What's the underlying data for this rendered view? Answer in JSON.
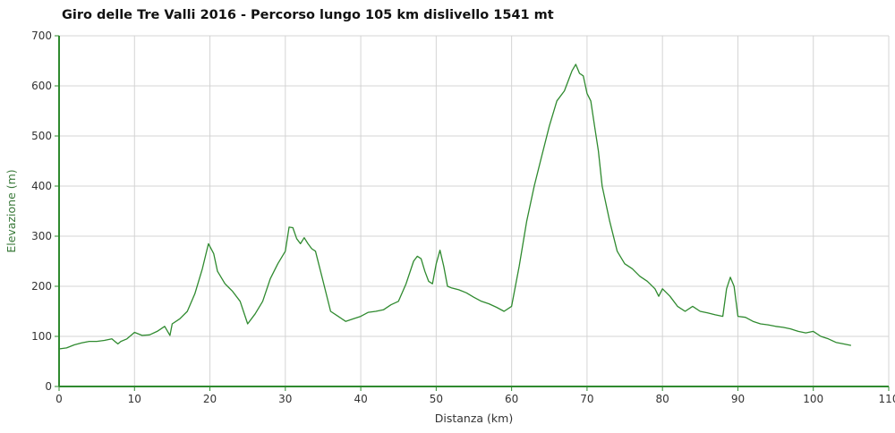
{
  "chart_data": {
    "type": "line",
    "title": "Giro delle Tre Valli 2016 - Percorso lungo 105 km dislivello 1541 mt",
    "xlabel": "Distanza (km)",
    "ylabel": "Elevazione (m)",
    "xlim": [
      0,
      110
    ],
    "ylim": [
      0,
      700
    ],
    "xticks": [
      0,
      10,
      20,
      30,
      40,
      50,
      60,
      70,
      80,
      90,
      100,
      110
    ],
    "yticks": [
      0,
      100,
      200,
      300,
      400,
      500,
      600,
      700
    ],
    "grid": true,
    "legend": "none",
    "colors": {
      "line": "#2f8a2f",
      "axis": "#2f8a2f",
      "grid": "#d4d4d4",
      "text": "#333333",
      "ylabel": "#3a7a3a"
    },
    "series": [
      {
        "x": [
          0,
          1,
          2,
          3,
          4,
          5,
          6,
          7,
          7.8,
          8.2,
          9,
          10,
          11,
          12,
          13,
          14,
          14.7,
          15,
          16,
          17,
          18,
          19,
          19.8,
          20.5,
          21,
          22,
          23,
          24,
          25,
          26,
          27,
          28,
          29,
          30,
          30.5,
          31,
          31.5,
          32,
          32.5,
          33,
          33.5,
          34,
          35,
          36,
          37,
          38,
          39,
          40,
          41,
          42,
          43,
          44,
          45,
          46,
          47,
          47.5,
          48,
          48.5,
          49,
          49.5,
          50,
          50.5,
          51,
          51.5,
          52,
          53,
          54,
          55,
          56,
          57,
          58,
          59,
          60,
          61,
          62,
          63,
          64,
          65,
          66,
          67,
          68,
          68.5,
          69,
          69.5,
          70,
          70.5,
          71,
          71.5,
          72,
          73,
          74,
          75,
          76,
          77,
          78,
          79,
          79.5,
          80,
          81,
          82,
          83,
          84,
          85,
          86,
          87,
          88,
          88.5,
          89,
          89.5,
          90,
          91,
          92,
          93,
          94,
          95,
          96,
          97,
          98,
          99,
          100,
          101,
          102,
          103,
          104,
          105
        ],
        "y": [
          75,
          77,
          83,
          87,
          90,
          90,
          92,
          95,
          85,
          90,
          95,
          108,
          102,
          103,
          110,
          120,
          102,
          125,
          135,
          150,
          185,
          235,
          285,
          265,
          230,
          205,
          190,
          170,
          125,
          145,
          170,
          215,
          245,
          270,
          318,
          317,
          295,
          285,
          297,
          285,
          275,
          270,
          210,
          150,
          140,
          130,
          135,
          140,
          148,
          150,
          153,
          163,
          170,
          205,
          250,
          260,
          255,
          230,
          210,
          205,
          245,
          272,
          240,
          200,
          197,
          193,
          187,
          178,
          170,
          165,
          158,
          150,
          160,
          240,
          330,
          400,
          460,
          520,
          570,
          590,
          630,
          643,
          625,
          620,
          585,
          570,
          520,
          470,
          400,
          330,
          270,
          245,
          235,
          220,
          210,
          195,
          180,
          195,
          180,
          160,
          150,
          160,
          150,
          147,
          143,
          140,
          195,
          218,
          200,
          140,
          138,
          130,
          125,
          123,
          120,
          118,
          115,
          110,
          107,
          110,
          100,
          95,
          88,
          85,
          82
        ]
      }
    ]
  }
}
